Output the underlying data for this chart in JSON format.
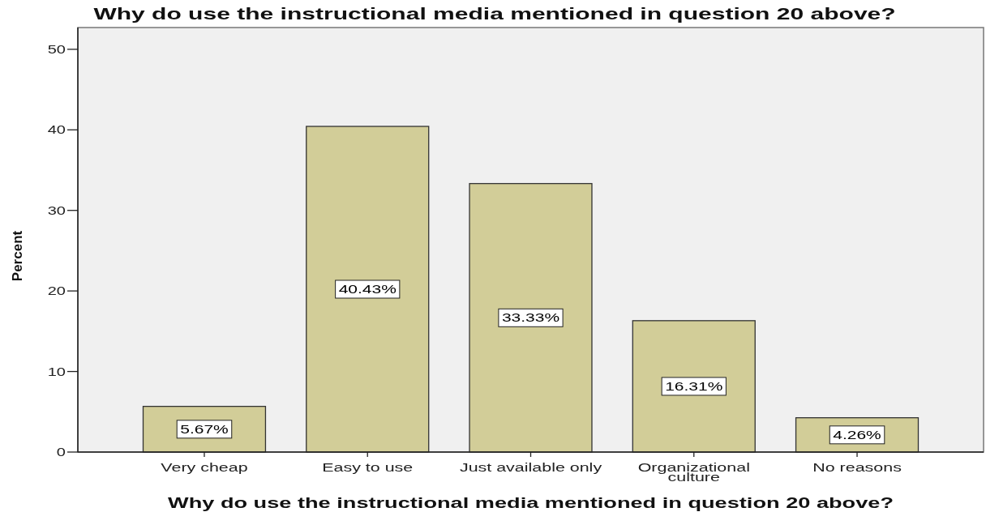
{
  "chart_data": {
    "type": "bar",
    "title": "Why do use the instructional media mentioned in question 20 above?",
    "xlabel": "Why do use the instructional media mentioned in question 20 above?",
    "ylabel": "Percent",
    "categories": [
      "Very cheap",
      "Easy to use",
      "Just available only",
      "Organizational culture",
      "No reasons"
    ],
    "values": [
      5.67,
      40.43,
      33.33,
      16.31,
      4.26
    ],
    "value_labels": [
      "5.67%",
      "40.43%",
      "33.33%",
      "16.31%",
      "4.26%"
    ],
    "color": "#d2cd98",
    "ylim": [
      0,
      52.7
    ],
    "yticks": [
      0,
      10,
      20,
      30,
      40,
      50
    ]
  }
}
